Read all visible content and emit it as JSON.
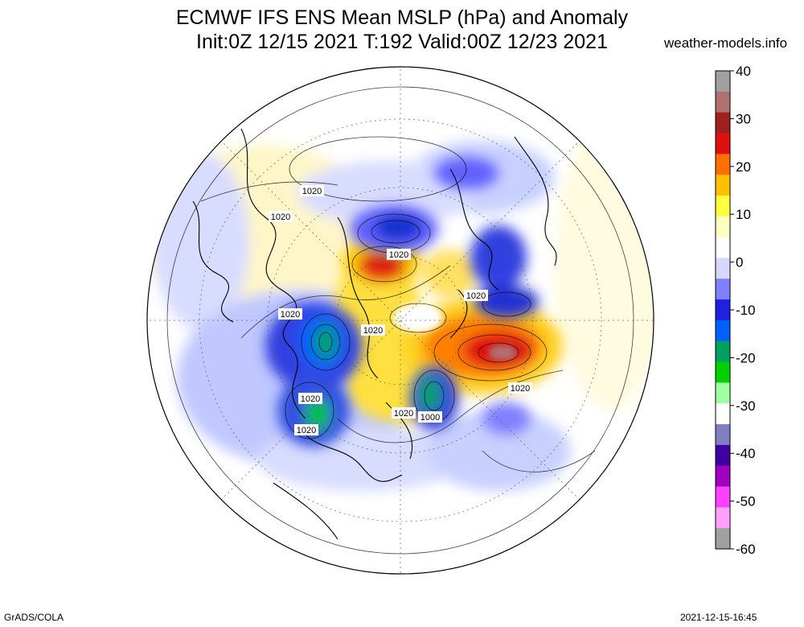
{
  "title_line1": "ECMWF IFS ENS Mean MSLP (hPa) and Anomaly",
  "title_line2": "Init:0Z 12/15 2021  T:192 Valid:00Z 12/23 2021",
  "site": "weather-models.info",
  "footer_left": "GrADS/COLA",
  "footer_right": "2021-12-15-16:45",
  "colorbar": {
    "ticks": [
      "40",
      "30",
      "20",
      "10",
      "0",
      "-10",
      "-20",
      "-30",
      "-40",
      "-50",
      "-60"
    ],
    "colors": [
      "#a0a0a0",
      "#b07070",
      "#a02020",
      "#e01010",
      "#ff7000",
      "#ffc000",
      "#ffff40",
      "#ffffc0",
      "#ffffff",
      "#d8d8ff",
      "#8080ff",
      "#2020e0",
      "#0060ff",
      "#00a060",
      "#00d000",
      "#a0ffa0",
      "#ffffff",
      "#8080c0",
      "#4000a0",
      "#a000c0",
      "#ff40ff",
      "#ffa0ff",
      "#a0a0a0"
    ]
  },
  "contour_labels": [
    {
      "text": "1020"
    },
    {
      "text": "1020"
    },
    {
      "text": "1020"
    },
    {
      "text": "1020"
    },
    {
      "text": "1020"
    },
    {
      "text": "1020"
    },
    {
      "text": "1020"
    },
    {
      "text": "1020"
    },
    {
      "text": "1020"
    },
    {
      "text": "1020"
    },
    {
      "text": "1000"
    }
  ]
}
